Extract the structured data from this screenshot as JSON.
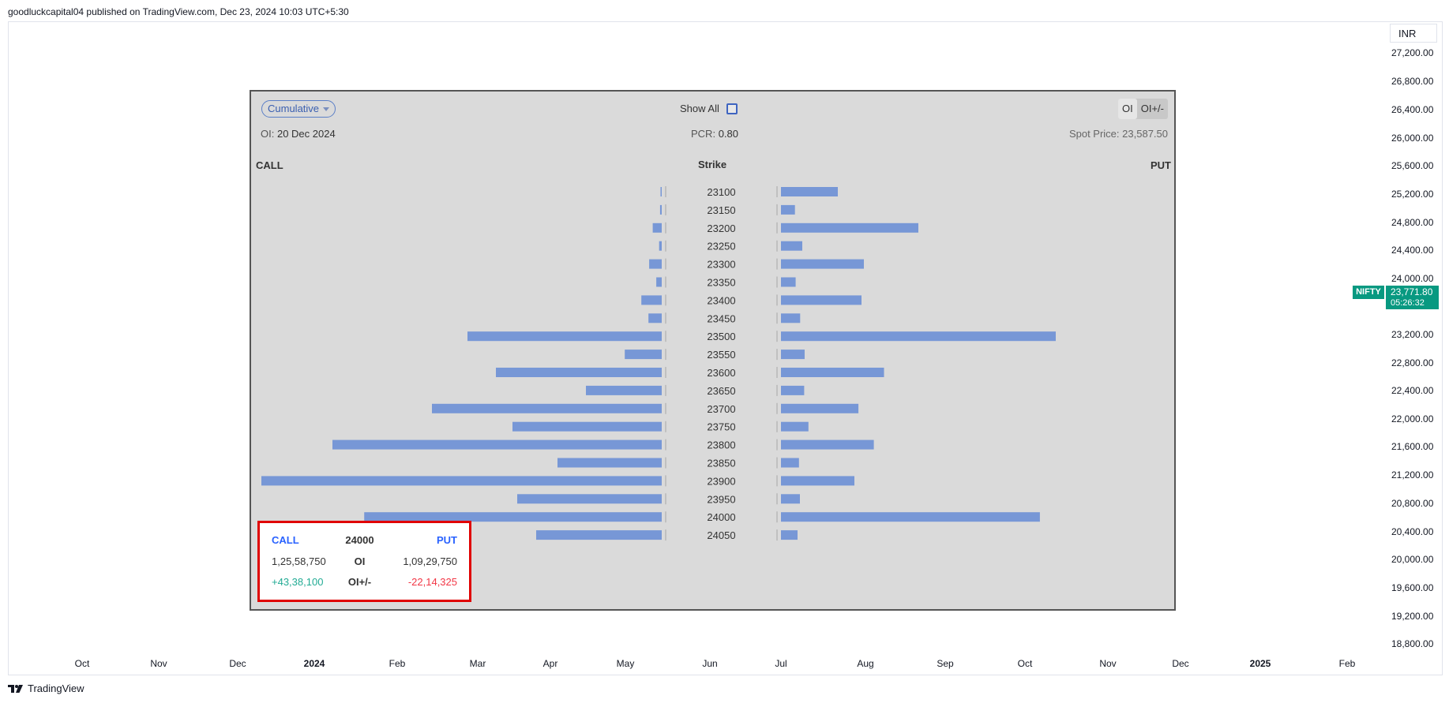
{
  "header": {
    "text": "goodluckcapital04 published on TradingView.com, Dec 23, 2024 10:03 UTC+5:30"
  },
  "currency": "INR",
  "symbol_tag": "NIFTY",
  "price_tag": {
    "price": "23,771.80",
    "countdown": "05:26:32"
  },
  "footer": {
    "brand": "TradingView"
  },
  "colors": {
    "bar": "#7797d6",
    "panel_bg": "#dadada",
    "price_tag": "#089981",
    "tooltip_border": "#e00000"
  },
  "y_axis_labels": [
    "27,200.00",
    "26,800.00",
    "26,400.00",
    "26,000.00",
    "25,600.00",
    "25,200.00",
    "24,800.00",
    "24,400.00",
    "24,000.00",
    "23,200.00",
    "22,800.00",
    "22,400.00",
    "22,000.00",
    "21,600.00",
    "21,200.00",
    "20,800.00",
    "20,400.00",
    "20,000.00",
    "19,600.00",
    "19,200.00",
    "18,800.00"
  ],
  "x_axis_labels": [
    "Oct",
    "Nov",
    "Dec",
    "2024",
    "Feb",
    "Mar",
    "Apr",
    "May",
    "Jun",
    "Jul",
    "Aug",
    "Sep",
    "Oct",
    "Nov",
    "Dec",
    "2025",
    "Feb"
  ],
  "panel": {
    "mode": "Cumulative",
    "show_all": "Show All",
    "toggle": [
      "OI",
      "OI+/-"
    ],
    "oi_label": "OI:",
    "oi_date": "20 Dec 2024",
    "pcr_label": "PCR:",
    "pcr_value": "0.80",
    "spot_label": "Spot Price:",
    "spot_value": "23,587.50",
    "call_header": "CALL",
    "strike_header": "Strike",
    "put_header": "PUT"
  },
  "chart_data": {
    "type": "bar",
    "orientation": "horizontal-butterfly",
    "categories": [
      "23100",
      "23150",
      "23200",
      "23250",
      "23300",
      "23350",
      "23400",
      "23450",
      "23500",
      "23550",
      "23600",
      "23650",
      "23700",
      "23750",
      "23800",
      "23850",
      "23900",
      "23950",
      "24000",
      "24050"
    ],
    "series": [
      {
        "name": "CALL",
        "values": [
          40000,
          70000,
          380000,
          110000,
          530000,
          230000,
          860000,
          560000,
          8200000,
          1560000,
          7000000,
          3200000,
          9700000,
          6300000,
          13900000,
          4400000,
          16900000,
          6100000,
          12558750,
          5300000
        ]
      },
      {
        "name": "PUT",
        "values": [
          2400000,
          590000,
          5800000,
          900000,
          3500000,
          620000,
          3400000,
          810000,
          11600000,
          1000000,
          4350000,
          980000,
          3270000,
          1160000,
          3920000,
          760000,
          3100000,
          800000,
          10929750,
          700000
        ]
      }
    ]
  },
  "tooltip": {
    "call": "CALL",
    "strike": "24000",
    "put": "PUT",
    "oi_call": "1,25,58,750",
    "oi_label": "OI",
    "oi_put": "1,09,29,750",
    "chg_call": "+43,38,100",
    "chg_label": "OI+/-",
    "chg_put": "-22,14,325"
  }
}
